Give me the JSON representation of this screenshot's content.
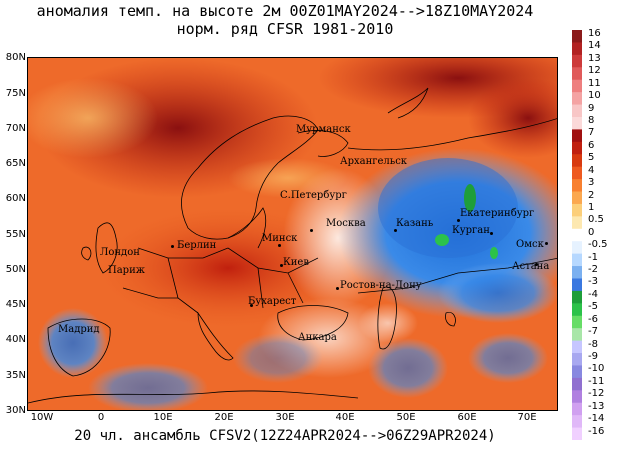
{
  "title_line1": "аномалия темп. на высоте 2м 00Z01MAY2024-->18Z10MAY2024",
  "title_line2": "норм. ряд CFSR 1981-2010",
  "footer": "20 чл. ансамбль CFSV2(12Z24APR2024-->06Z29APR2024)",
  "lat_labels": [
    "80N",
    "75N",
    "70N",
    "65N",
    "60N",
    "55N",
    "50N",
    "45N",
    "40N",
    "35N",
    "30N"
  ],
  "lon_labels": [
    "10W",
    "0",
    "10E",
    "20E",
    "30E",
    "40E",
    "50E",
    "60E",
    "70E"
  ],
  "cities": [
    {
      "name": "Мурманск"
    },
    {
      "name": "Архангельск"
    },
    {
      "name": "С.Петербург"
    },
    {
      "name": "Москва"
    },
    {
      "name": "Казань"
    },
    {
      "name": "Екатеринбург"
    },
    {
      "name": "Курган"
    },
    {
      "name": "Омск"
    },
    {
      "name": "Астана"
    },
    {
      "name": "Минск"
    },
    {
      "name": "Киев"
    },
    {
      "name": "Берлин"
    },
    {
      "name": "Лондон"
    },
    {
      "name": "Париж"
    },
    {
      "name": "Ростов-на-Дону"
    },
    {
      "name": "Бухарест"
    },
    {
      "name": "Мадрид"
    },
    {
      "name": "Анкара"
    }
  ],
  "colorbar": {
    "labels": [
      "16",
      "14",
      "13",
      "12",
      "11",
      "10",
      "9",
      "8",
      "7",
      "6",
      "5",
      "4",
      "3",
      "2",
      "1",
      "0.5",
      "0",
      "-0.5",
      "-1",
      "-2",
      "-3",
      "-4",
      "-5",
      "-6",
      "-7",
      "-8",
      "-9",
      "-10",
      "-11",
      "-12",
      "-13",
      "-14",
      "-16"
    ],
    "colors": [
      "#8b1a1a",
      "#b22222",
      "#cd3a3a",
      "#e05a5a",
      "#ee7f7f",
      "#f4a3a3",
      "#f8c6c6",
      "#fbd9d9",
      "#a01010",
      "#c02010",
      "#d83a10",
      "#ee5a20",
      "#f88030",
      "#fba850",
      "#fccf7a",
      "#fde8b0",
      "#ffffff",
      "#e6f2ff",
      "#b6d8ff",
      "#7bb0f0",
      "#3a78e0",
      "#1e9e3a",
      "#2cc24a",
      "#66dd66",
      "#a8e6a8",
      "#c6c6ff",
      "#a8a8f0",
      "#8888e0",
      "#9070d0",
      "#b080e0",
      "#d0a0f0",
      "#e0b8f8",
      "#f0d0ff"
    ]
  }
}
